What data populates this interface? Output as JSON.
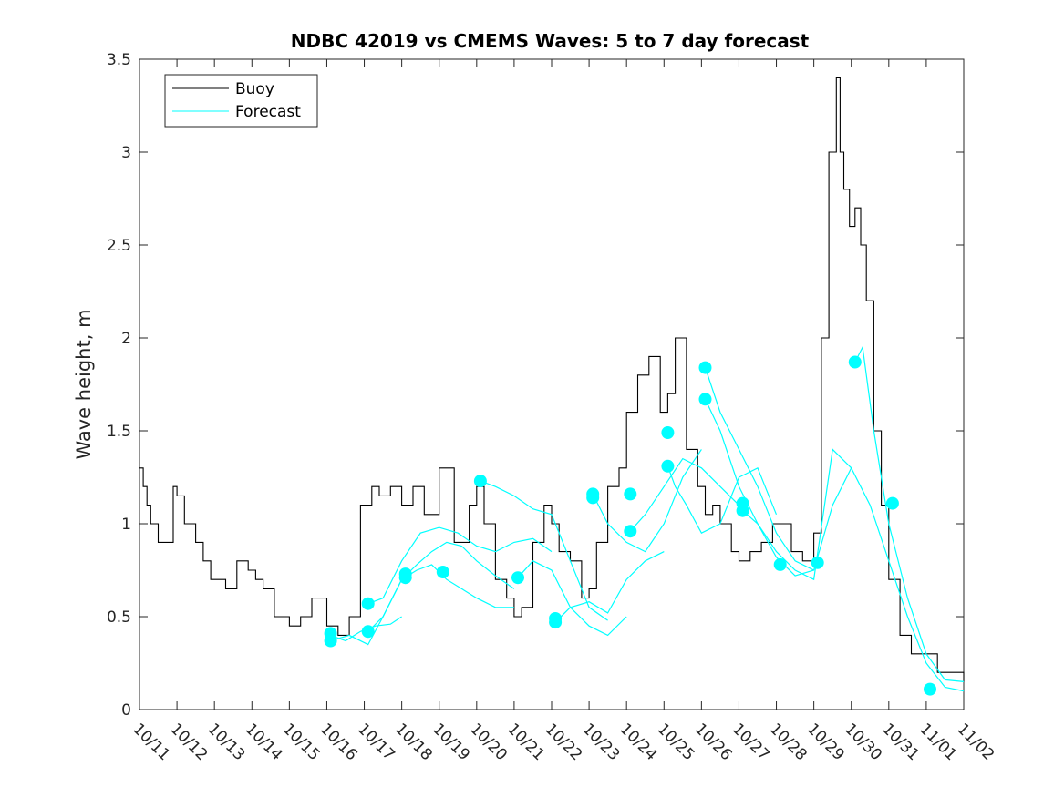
{
  "colors": {
    "buoy": "#000000",
    "forecast": "#00FFFF",
    "axis": "#262626"
  },
  "chart_data": {
    "type": "line",
    "title": "NDBC 42019 vs CMEMS Waves: 5 to 7 day forecast",
    "xlabel": "",
    "ylabel": "Wave height, m",
    "xlim": [
      0,
      22
    ],
    "ylim": [
      0,
      3.5
    ],
    "x_unit": "days since 10/11",
    "x_tick_values": [
      0,
      1,
      2,
      3,
      4,
      5,
      6,
      7,
      8,
      9,
      10,
      11,
      12,
      13,
      14,
      15,
      16,
      17,
      18,
      19,
      20,
      21,
      22
    ],
    "x_tick_labels": [
      "10/11",
      "10/12",
      "10/13",
      "10/14",
      "10/15",
      "10/16",
      "10/17",
      "10/18",
      "10/19",
      "10/20",
      "10/21",
      "10/22",
      "10/23",
      "10/24",
      "10/25",
      "10/26",
      "10/27",
      "10/28",
      "10/29",
      "10/30",
      "10/31",
      "11/01",
      "11/02"
    ],
    "y_ticks": [
      0,
      0.5,
      1,
      1.5,
      2,
      2.5,
      3,
      3.5
    ],
    "y_tick_labels": [
      "0",
      "0.5",
      "1",
      "1.5",
      "2",
      "2.5",
      "3",
      "3.5"
    ],
    "legend": {
      "placement": "top-left",
      "entries": [
        "Buoy",
        "Forecast"
      ]
    },
    "series": [
      {
        "name": "Buoy",
        "style": "line",
        "x": [
          0,
          0.1,
          0.2,
          0.3,
          0.5,
          0.7,
          0.9,
          1.0,
          1.2,
          1.4,
          1.5,
          1.7,
          1.9,
          2.1,
          2.3,
          2.6,
          2.9,
          3.1,
          3.3,
          3.6,
          4.0,
          4.3,
          4.6,
          5.0,
          5.3,
          5.6,
          5.9,
          6.2,
          6.4,
          6.7,
          7.0,
          7.3,
          7.6,
          8.0,
          8.4,
          8.8,
          9.0,
          9.2,
          9.5,
          9.8,
          10.0,
          10.2,
          10.5,
          10.8,
          11.0,
          11.2,
          11.5,
          11.8,
          12.0,
          12.2,
          12.5,
          12.8,
          13.0,
          13.3,
          13.6,
          13.9,
          14.1,
          14.3,
          14.6,
          14.9,
          15.1,
          15.3,
          15.5,
          15.8,
          16.0,
          16.3,
          16.6,
          16.9,
          17.1,
          17.4,
          17.7,
          18.0,
          18.2,
          18.4,
          18.6,
          18.7,
          18.8,
          18.95,
          19.1,
          19.25,
          19.4,
          19.6,
          19.8,
          20.0,
          20.3,
          20.6,
          21.0,
          21.3,
          21.6,
          22.0
        ],
        "y": [
          1.3,
          1.2,
          1.1,
          1.0,
          0.9,
          0.9,
          1.2,
          1.15,
          1.0,
          1.0,
          0.9,
          0.8,
          0.7,
          0.7,
          0.65,
          0.8,
          0.75,
          0.7,
          0.65,
          0.5,
          0.45,
          0.5,
          0.6,
          0.45,
          0.4,
          0.5,
          1.1,
          1.2,
          1.15,
          1.2,
          1.1,
          1.2,
          1.05,
          1.3,
          0.9,
          1.1,
          1.2,
          1.0,
          0.7,
          0.6,
          0.5,
          0.55,
          0.9,
          1.1,
          1.0,
          0.85,
          0.8,
          0.6,
          0.65,
          0.9,
          1.2,
          1.3,
          1.6,
          1.8,
          1.9,
          1.6,
          1.7,
          2.0,
          1.4,
          1.2,
          1.05,
          1.1,
          1.0,
          0.85,
          0.8,
          0.85,
          0.9,
          1.0,
          1.0,
          0.85,
          0.8,
          0.95,
          2.0,
          3.0,
          3.4,
          3.0,
          2.8,
          2.6,
          2.7,
          2.5,
          2.2,
          1.5,
          1.1,
          0.7,
          0.4,
          0.3,
          0.3,
          0.2,
          0.2,
          0.15
        ]
      },
      {
        "name": "Forecast",
        "style": "line",
        "lines": [
          {
            "x": [
              5.1,
              5.5,
              5.9,
              6.3,
              6.7,
              7.0
            ],
            "y": [
              0.4,
              0.37,
              0.42,
              0.45,
              0.46,
              0.5
            ]
          },
          {
            "x": [
              5.1,
              5.6,
              6.1,
              6.5,
              7.0,
              7.4,
              7.8,
              8.2,
              8.6,
              9.0,
              9.5,
              10.0
            ],
            "y": [
              0.37,
              0.4,
              0.35,
              0.5,
              0.7,
              0.75,
              0.78,
              0.7,
              0.65,
              0.6,
              0.55,
              0.55
            ]
          },
          {
            "x": [
              6.1,
              6.5,
              7.0,
              7.4,
              7.8,
              8.2,
              8.6,
              9.0,
              9.5,
              10.0
            ],
            "y": [
              0.42,
              0.5,
              0.7,
              0.78,
              0.85,
              0.9,
              0.88,
              0.8,
              0.72,
              0.65
            ]
          },
          {
            "x": [
              6.1,
              6.5,
              7.0,
              7.5,
              8.0,
              8.5,
              9.0,
              9.5,
              10.0,
              10.5,
              11.0
            ],
            "y": [
              0.57,
              0.6,
              0.8,
              0.95,
              0.98,
              0.95,
              0.88,
              0.85,
              0.9,
              0.92,
              0.85
            ]
          },
          {
            "x": [
              9.1,
              9.5,
              10.0,
              10.5,
              11.0,
              11.5,
              12.0,
              12.5
            ],
            "y": [
              1.23,
              1.2,
              1.15,
              1.08,
              1.05,
              0.8,
              0.55,
              0.48
            ]
          },
          {
            "x": [
              10.1,
              10.5,
              11.0,
              11.5,
              12.0,
              12.5,
              13.0
            ],
            "y": [
              0.71,
              0.8,
              0.75,
              0.55,
              0.45,
              0.4,
              0.5
            ]
          },
          {
            "x": [
              11.1,
              11.5,
              12.0,
              12.5,
              13.0,
              13.5,
              14.0
            ],
            "y": [
              0.47,
              0.55,
              0.58,
              0.52,
              0.7,
              0.8,
              0.85
            ]
          },
          {
            "x": [
              12.1,
              12.5,
              13.0,
              13.5,
              14.0,
              14.5,
              15.0
            ],
            "y": [
              1.16,
              1.0,
              0.9,
              0.85,
              1.0,
              1.25,
              1.4
            ]
          },
          {
            "x": [
              13.1,
              13.5,
              14.0,
              14.5,
              15.0,
              15.5,
              16.0
            ],
            "y": [
              0.96,
              1.05,
              1.2,
              1.35,
              1.3,
              1.2,
              1.1
            ]
          },
          {
            "x": [
              14.1,
              14.3,
              14.6,
              15.0,
              15.5,
              16.0,
              16.5,
              17.0
            ],
            "y": [
              1.31,
              1.2,
              1.1,
              0.95,
              1.0,
              1.25,
              1.3,
              1.05
            ]
          },
          {
            "x": [
              15.1,
              15.5,
              16.0,
              16.5,
              17.0,
              17.5,
              18.0
            ],
            "y": [
              1.84,
              1.6,
              1.4,
              1.2,
              0.95,
              0.8,
              0.75
            ]
          },
          {
            "x": [
              15.1,
              15.5,
              16.0,
              16.5,
              17.0,
              17.5,
              18.0,
              18.5,
              19.0
            ],
            "y": [
              1.67,
              1.5,
              1.2,
              1.0,
              0.85,
              0.75,
              0.7,
              1.4,
              1.3
            ]
          },
          {
            "x": [
              16.1,
              16.5,
              17.0,
              17.5,
              18.0,
              18.5,
              19.0,
              19.5,
              20.0,
              20.5,
              21.0,
              21.5,
              22.0
            ],
            "y": [
              1.07,
              1.0,
              0.82,
              0.72,
              0.75,
              1.1,
              1.3,
              1.1,
              0.8,
              0.5,
              0.25,
              0.12,
              0.1
            ]
          },
          {
            "x": [
              19.1,
              19.3,
              19.6,
              20.0,
              20.5,
              21.0,
              21.5,
              22.0
            ],
            "y": [
              1.87,
              1.95,
              1.5,
              1.0,
              0.6,
              0.3,
              0.16,
              0.15
            ]
          }
        ]
      },
      {
        "name": "Forecast start points",
        "style": "markers",
        "x": [
          5.1,
          5.1,
          6.1,
          6.1,
          7.1,
          7.1,
          8.1,
          9.1,
          10.1,
          11.1,
          11.1,
          12.1,
          12.1,
          13.1,
          13.1,
          14.1,
          14.1,
          15.1,
          15.1,
          16.1,
          16.1,
          17.1,
          18.1,
          19.1,
          20.1,
          21.1
        ],
        "y": [
          0.37,
          0.41,
          0.42,
          0.57,
          0.71,
          0.73,
          0.74,
          1.23,
          0.71,
          0.47,
          0.49,
          1.14,
          1.16,
          0.96,
          1.16,
          1.31,
          1.49,
          1.84,
          1.67,
          1.07,
          1.11,
          0.78,
          0.79,
          1.87,
          1.11,
          0.11
        ]
      }
    ]
  }
}
